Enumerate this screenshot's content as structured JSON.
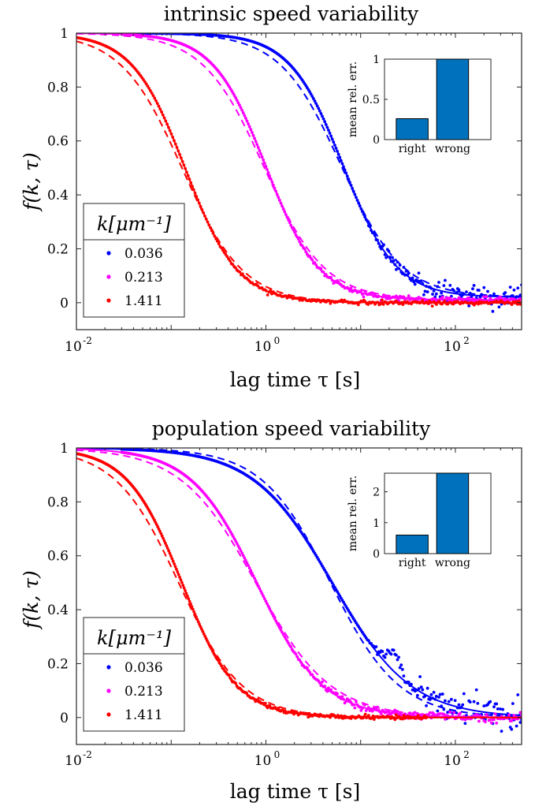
{
  "figure": {
    "ylabel": "f(k, τ)",
    "xlabel": "lag time τ [s]",
    "legend_title": "k[μm⁻¹]"
  },
  "colors": {
    "blue": "#0000ff",
    "magenta": "#ff00ff",
    "red": "#ff0000",
    "inset_bar": "#0072bd"
  },
  "chart_data": [
    {
      "type": "line",
      "title": "intrinsic speed variability",
      "xlabel": "lag time τ [s]",
      "ylabel": "f(k, τ)",
      "xscale": "log",
      "xlim": [
        0.01,
        500
      ],
      "ylim": [
        -0.1,
        1
      ],
      "xticks": [
        0.01,
        1,
        100
      ],
      "xtick_labels": [
        "10",
        "10",
        "10"
      ],
      "xtick_exponents": [
        "-2",
        "0",
        "2"
      ],
      "yticks": [
        0,
        0.2,
        0.4,
        0.6,
        0.8,
        1
      ],
      "ytick_labels": [
        "0",
        "0.2",
        "0.4",
        "0.6",
        "0.8",
        "1"
      ],
      "legend": {
        "title": "k[μm⁻¹]",
        "placement": "bottom-left",
        "entries": [
          "0.036",
          "0.213",
          "1.411"
        ]
      },
      "series": [
        {
          "name": "0.036",
          "color": "#0000ff",
          "tau_half": 6.5,
          "hill": 1.55,
          "plateau": 0.02,
          "noise": 0.025,
          "data_x_range": [
            0.03,
            500
          ],
          "dashed": {
            "tau_half": 6.2,
            "hill": 1.35,
            "plateau": 0.02
          }
        },
        {
          "name": "0.213",
          "color": "#ff00ff",
          "tau_half": 1.0,
          "hill": 1.55,
          "plateau": 0.01,
          "noise": 0.006,
          "data_x_range": [
            0.03,
            500
          ],
          "dashed": {
            "tau_half": 0.95,
            "hill": 1.35,
            "plateau": 0.01
          }
        },
        {
          "name": "1.411",
          "color": "#ff0000",
          "tau_half": 0.14,
          "hill": 1.55,
          "plateau": 0.0,
          "noise": 0.004,
          "data_x_range": [
            0.01,
            500
          ],
          "dashed": {
            "tau_half": 0.13,
            "hill": 1.35,
            "plateau": 0.0
          }
        }
      ],
      "inset": {
        "type": "bar",
        "ylabel": "mean rel. err.",
        "categories": [
          "right",
          "wrong"
        ],
        "values": [
          0.26,
          1.0
        ],
        "ylim": [
          0,
          1
        ],
        "yticks": [
          0,
          0.5,
          1
        ],
        "ytick_labels": [
          "0",
          "0.5",
          "1"
        ]
      }
    },
    {
      "type": "line",
      "title": "population speed variability",
      "xlabel": "lag time τ [s]",
      "ylabel": "f(k, τ)",
      "xscale": "log",
      "xlim": [
        0.01,
        500
      ],
      "ylim": [
        -0.1,
        1
      ],
      "xticks": [
        0.01,
        1,
        100
      ],
      "xtick_labels": [
        "10",
        "10",
        "10"
      ],
      "xtick_exponents": [
        "-2",
        "0",
        "2"
      ],
      "yticks": [
        0,
        0.2,
        0.4,
        0.6,
        0.8,
        1
      ],
      "ytick_labels": [
        "0",
        "0.2",
        "0.4",
        "0.6",
        "0.8",
        "1"
      ],
      "legend": {
        "title": "k[μm⁻¹]",
        "placement": "bottom-left",
        "entries": [
          "0.036",
          "0.213",
          "1.411"
        ]
      },
      "series": [
        {
          "name": "0.036",
          "color": "#0000ff",
          "tau_half": 5.0,
          "hill": 1.05,
          "plateau": 0.0,
          "noise": 0.03,
          "data_x_range": [
            0.03,
            500
          ],
          "bump": true,
          "dashed": {
            "tau_half": 4.8,
            "hill": 1.2,
            "plateau": 0.0
          }
        },
        {
          "name": "0.213",
          "color": "#ff00ff",
          "tau_half": 0.8,
          "hill": 1.25,
          "plateau": 0.0,
          "noise": 0.008,
          "data_x_range": [
            0.03,
            500
          ],
          "dashed": {
            "tau_half": 0.78,
            "hill": 1.1,
            "plateau": 0.0
          }
        },
        {
          "name": "1.411",
          "color": "#ff0000",
          "tau_half": 0.13,
          "hill": 1.5,
          "plateau": 0.0,
          "noise": 0.004,
          "data_x_range": [
            0.01,
            50
          ],
          "dashed": {
            "tau_half": 0.12,
            "hill": 1.3,
            "plateau": 0.0
          }
        }
      ],
      "inset": {
        "type": "bar",
        "ylabel": "mean rel. err.",
        "categories": [
          "right",
          "wrong"
        ],
        "values": [
          0.6,
          2.6
        ],
        "ylim": [
          0,
          2.6
        ],
        "yticks": [
          0,
          1,
          2
        ],
        "ytick_labels": [
          "0",
          "1",
          "2"
        ]
      }
    }
  ]
}
